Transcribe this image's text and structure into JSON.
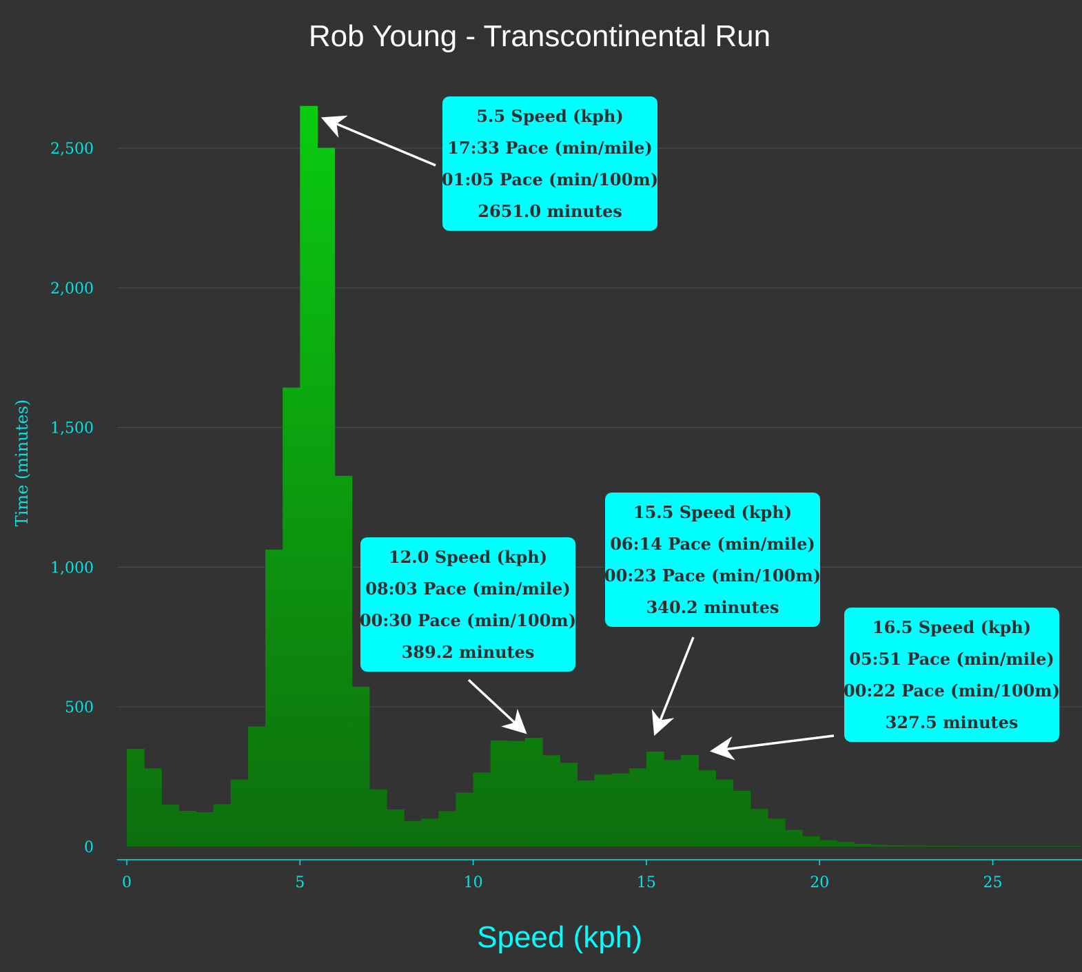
{
  "chart_data": {
    "type": "bar",
    "title": "Rob Young - Transcontinental Run",
    "xlabel": "Speed (kph)",
    "ylabel": "Time (minutes)",
    "xlim": [
      -0.25,
      27.5
    ],
    "ylim": [
      -55,
      2680
    ],
    "bin_width": 0.5,
    "x_ticks": [
      0,
      5,
      10,
      15,
      20,
      25
    ],
    "x_tick_labels": [
      "0",
      "5",
      "10",
      "15",
      "20",
      "25"
    ],
    "y_ticks": [
      0,
      500,
      1000,
      1500,
      2000,
      2500
    ],
    "y_tick_labels": [
      "0",
      "500",
      "1,000",
      "1,500",
      "2,000",
      "2,500"
    ],
    "grid": true,
    "colors": {
      "background": "#333333",
      "bar_top": "#0acc10",
      "bar_bottom": "#0e6e0e",
      "axis": "#00e5e5",
      "annotation_bg": "#00ffff",
      "annotation_text": "#2f2f2f",
      "arrow": "#ffffff",
      "title": "#ffffff"
    },
    "series": [
      {
        "x": [
          0,
          0.5,
          1,
          1.5,
          2,
          2.5,
          3,
          3.5,
          4,
          4.5,
          5,
          5.5,
          6,
          6.5,
          7,
          7.5,
          8,
          8.5,
          9,
          9.5,
          10,
          10.5,
          11,
          11.5,
          12,
          12.5,
          13,
          13.5,
          14,
          14.5,
          15,
          15.5,
          16,
          16.5,
          17,
          17.5,
          18,
          18.5,
          19,
          19.5,
          20,
          20.5,
          21,
          21.5,
          22,
          22.5,
          23,
          23.5,
          24,
          24.5,
          25,
          25.5,
          26,
          26.5,
          27
        ],
        "values": [
          350,
          280,
          150,
          128,
          123,
          152,
          240,
          430,
          1063,
          1643,
          2651,
          2501,
          1327,
          572,
          205,
          133,
          92,
          100,
          127,
          193,
          265,
          380,
          378,
          389.2,
          327,
          300,
          237,
          258,
          262,
          280,
          340.2,
          310,
          327.5,
          273,
          240,
          200,
          135,
          100,
          60,
          37,
          23,
          16,
          10,
          6,
          5,
          4,
          3,
          3,
          2,
          2,
          2,
          2,
          2,
          2,
          2
        ]
      }
    ],
    "annotations": [
      {
        "lines": [
          "5.5 Speed (kph)",
          "17:33 Pace (min/mile)",
          "01:05 Pace (min/100m)",
          "2651.0 minutes"
        ],
        "target": [
          5.75,
          2651
        ]
      },
      {
        "lines": [
          "12.0 Speed (kph)",
          "08:03 Pace (min/mile)",
          "00:30 Pace (min/100m)",
          "389.2 minutes"
        ],
        "target": [
          11.5,
          389.2
        ]
      },
      {
        "lines": [
          "15.5 Speed (kph)",
          "06:14 Pace (min/mile)",
          "00:23 Pace (min/100m)",
          "340.2 minutes"
        ],
        "target": [
          15.25,
          340.2
        ]
      },
      {
        "lines": [
          "16.5 Speed (kph)",
          "05:51 Pace (min/mile)",
          "00:22 Pace (min/100m)",
          "327.5 minutes"
        ],
        "target": [
          16.9,
          327.5
        ]
      }
    ]
  }
}
